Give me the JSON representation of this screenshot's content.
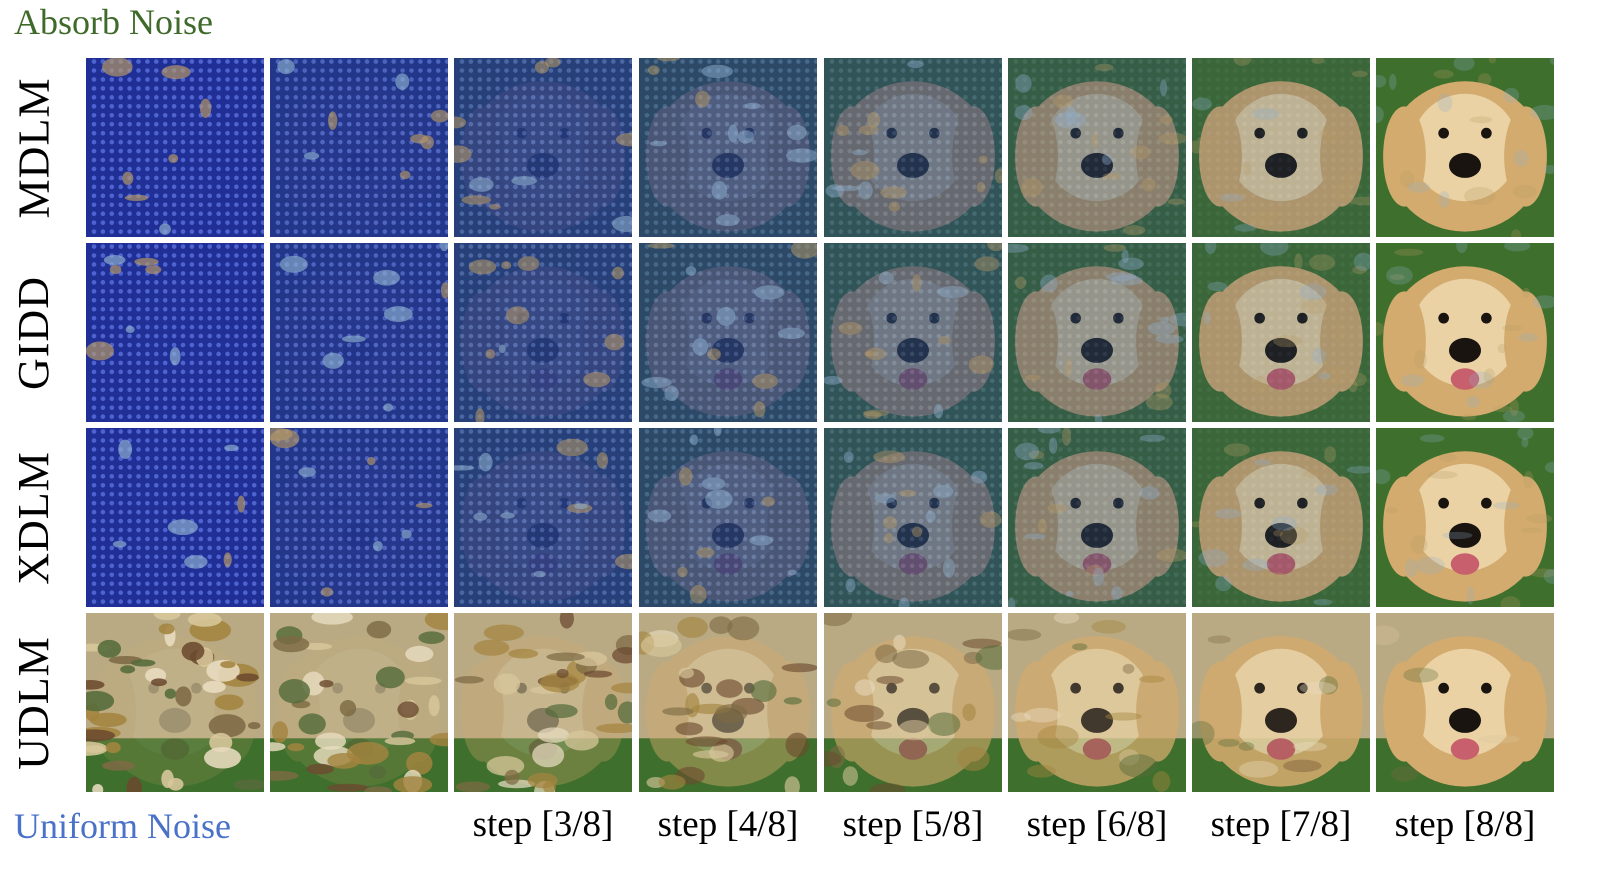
{
  "labels": {
    "top": "Absorb Noise",
    "bottom": "Uniform Noise"
  },
  "rows": [
    {
      "label": "MDLM",
      "noise": "absorb"
    },
    {
      "label": "GIDD",
      "noise": "absorb"
    },
    {
      "label": "XDLM",
      "noise": "absorb"
    },
    {
      "label": "UDLM",
      "noise": "uniform"
    }
  ],
  "steps": [
    "",
    "",
    "step [3/8]",
    "step [4/8]",
    "step [5/8]",
    "step [6/8]",
    "step [7/8]",
    "step [8/8]"
  ],
  "colors": {
    "mask_blue": "#1e2d9a",
    "mask_dot": "#4f63d6",
    "fur": "#d3ab6e",
    "fur_light": "#ead2a4",
    "grass": "#3f6f2c",
    "background_uniform": "#b9aa84",
    "nose": "#1a1410",
    "tongue": "#c75f6c"
  },
  "progress": [
    0.04,
    0.14,
    0.3,
    0.45,
    0.6,
    0.75,
    0.88,
    1.0
  ]
}
